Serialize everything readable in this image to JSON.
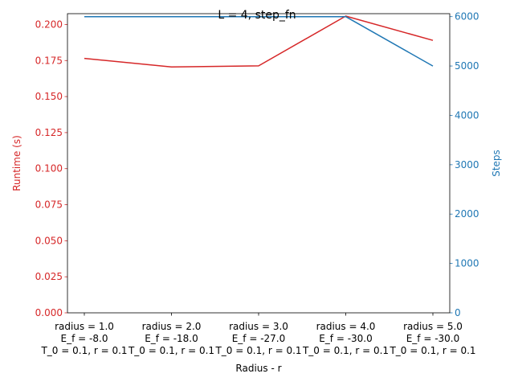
{
  "chart_data": {
    "type": "line",
    "title": "L = 4, step_fn",
    "xlabel": "Radius - r",
    "ylabel": "Runtime (s)",
    "y2label": "Steps",
    "categories": [
      [
        "radius = 1.0",
        "E_f = -8.0",
        "T_0 = 0.1, r = 0.1"
      ],
      [
        "radius = 2.0",
        "E_f = -18.0",
        "T_0 = 0.1, r = 0.1"
      ],
      [
        "radius = 3.0",
        "E_f = -27.0",
        "T_0 = 0.1, r = 0.1"
      ],
      [
        "radius = 4.0",
        "E_f = -30.0",
        "T_0 = 0.1, r = 0.1"
      ],
      [
        "radius = 5.0",
        "E_f = -30.0",
        "T_0 = 0.1, r = 0.1"
      ]
    ],
    "ylim": [
      0,
      0.2075
    ],
    "y2lim": [
      0,
      6060
    ],
    "yticks": [
      "0.000",
      "0.025",
      "0.050",
      "0.075",
      "0.100",
      "0.125",
      "0.150",
      "0.175",
      "0.200"
    ],
    "y2ticks": [
      "0",
      "1000",
      "2000",
      "3000",
      "4000",
      "5000",
      "6000"
    ],
    "series": [
      {
        "name": "Runtime (s)",
        "axis": "left",
        "color": "#d62728",
        "values": [
          0.1765,
          0.1705,
          0.1713,
          0.2058,
          0.189
        ]
      },
      {
        "name": "Steps",
        "axis": "right",
        "color": "#1f77b4",
        "values": [
          6000,
          6000,
          6000,
          6000,
          5000
        ]
      }
    ]
  }
}
